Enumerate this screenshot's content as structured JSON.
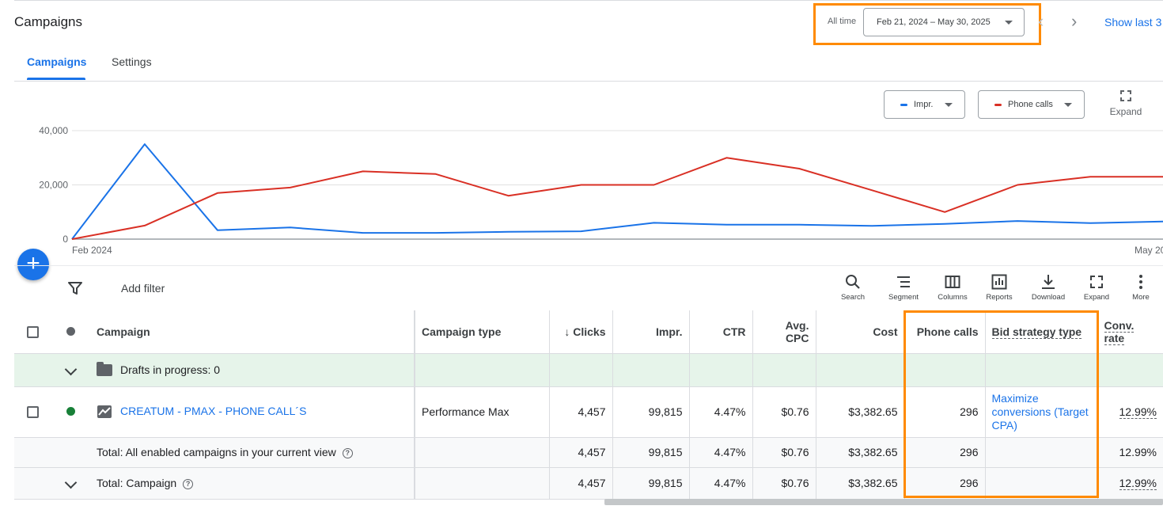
{
  "header": {
    "title": "Campaigns",
    "date_range_label": "All time",
    "date_range_value": "Feb 21, 2024 – May 30, 2025",
    "show_last": "Show last 3"
  },
  "tabs": [
    {
      "label": "Campaigns",
      "active": true
    },
    {
      "label": "Settings",
      "active": false
    }
  ],
  "chart_controls": {
    "metric1": "Impr.",
    "metric2": "Phone calls",
    "expand": "Expand"
  },
  "chart_data": {
    "type": "line",
    "y_ticks": [
      "40,000",
      "20,000",
      "0"
    ],
    "ylim": [
      0,
      40000
    ],
    "x_tick_start": "Feb 2024",
    "x_tick_end": "May 20",
    "series": [
      {
        "name": "Impr.",
        "color": "#1a73e8",
        "values": [
          0,
          35000,
          3300,
          4300,
          2300,
          2300,
          2700,
          2900,
          6000,
          5300,
          5300,
          4900,
          5600,
          6700,
          5900,
          6500
        ]
      },
      {
        "name": "Phone calls",
        "color": "#d93025",
        "values": [
          0,
          5000,
          17000,
          19000,
          25000,
          24000,
          16000,
          20000,
          20000,
          30000,
          26000,
          18000,
          10000,
          20000,
          23000,
          23000
        ]
      }
    ]
  },
  "toolbar": {
    "add_filter": "Add filter",
    "tools": [
      "Search",
      "Segment",
      "Columns",
      "Reports",
      "Download",
      "Expand",
      "More"
    ]
  },
  "table": {
    "headers": {
      "campaign": "Campaign",
      "campaign_type": "Campaign type",
      "clicks": "Clicks",
      "impr": "Impr.",
      "ctr": "CTR",
      "avg_cpc": "Avg. CPC",
      "cost": "Cost",
      "phone_calls": "Phone calls",
      "bid_strategy": "Bid strategy type",
      "conv_rate": "Conv. rate"
    },
    "drafts_label": "Drafts in progress: 0",
    "row": {
      "campaign": "CREATUM - PMAX - PHONE CALL´S",
      "campaign_type": "Performance Max",
      "clicks": "4,457",
      "impr": "99,815",
      "ctr": "4.47%",
      "avg_cpc": "$0.76",
      "cost": "$3,382.65",
      "phone_calls": "296",
      "bid_strategy": "Maximize conversions (Target CPA)",
      "conv_rate": "12.99%"
    },
    "total_enabled": {
      "label": "Total: All enabled campaigns in your current view",
      "clicks": "4,457",
      "impr": "99,815",
      "ctr": "4.47%",
      "avg_cpc": "$0.76",
      "cost": "$3,382.65",
      "phone_calls": "296",
      "conv_rate": "12.99%"
    },
    "total_campaign": {
      "label": "Total: Campaign",
      "clicks": "4,457",
      "impr": "99,815",
      "ctr": "4.47%",
      "avg_cpc": "$0.76",
      "cost": "$3,382.65",
      "phone_calls": "296",
      "conv_rate": "12.99%"
    }
  }
}
